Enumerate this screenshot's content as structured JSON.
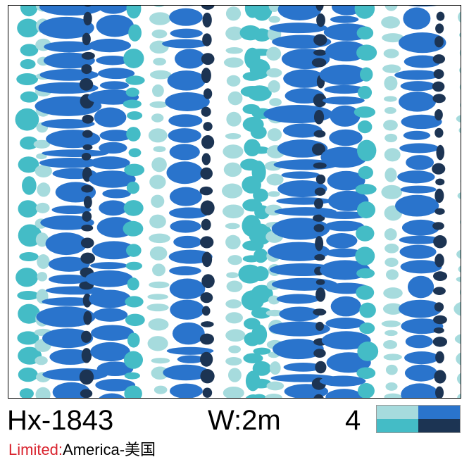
{
  "product": {
    "code": "Hx-1843",
    "width": "W:2m",
    "color_count": "4",
    "limited_label": "Limited:",
    "limited_value": "America-美国"
  },
  "colors": {
    "light_aqua": "#a6dbdd",
    "blue": "#2a74cc",
    "teal": "#44bcc6",
    "navy": "#1c3453",
    "limited_label": "#d9232e"
  },
  "swatch": [
    "#a6dbdd",
    "#2a74cc",
    "#44bcc6",
    "#1c3453"
  ]
}
